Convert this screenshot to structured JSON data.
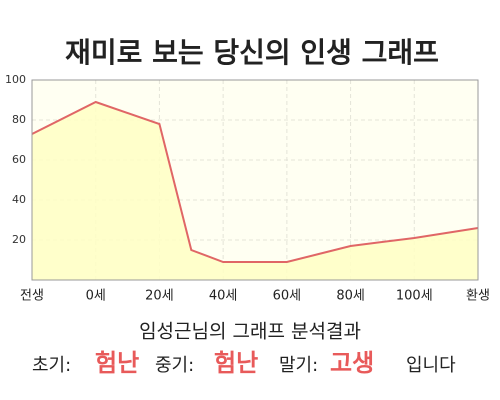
{
  "chart_data": {
    "type": "area",
    "title": "재미로 보는 당신의 인생 그래프",
    "x": [
      -20,
      0,
      20,
      30,
      40,
      60,
      70,
      80,
      100,
      120
    ],
    "values": [
      73,
      89,
      78,
      15,
      9,
      9,
      13,
      17,
      21,
      26
    ],
    "color": "#e06666",
    "fill": "#ffffc4",
    "xlim": [
      -20,
      120
    ],
    "xticks": [
      {
        "value": -20,
        "label": "전생"
      },
      {
        "value": 0,
        "label": "0세"
      },
      {
        "value": 20,
        "label": "20세"
      },
      {
        "value": 40,
        "label": "40세"
      },
      {
        "value": 60,
        "label": "60세"
      },
      {
        "value": 80,
        "label": "80세"
      },
      {
        "value": 100,
        "label": "100세"
      },
      {
        "value": 120,
        "label": "환생"
      }
    ],
    "ylim": [
      0,
      100
    ],
    "yticks": [
      20,
      40,
      60,
      80,
      100
    ],
    "grid": true
  },
  "result": {
    "heading": "임성근님의 그래프 분석결과",
    "items": [
      {
        "label": "초기:",
        "value": "험난"
      },
      {
        "label": "중기:",
        "value": "험난"
      },
      {
        "label": "말기:",
        "value": "고생"
      }
    ],
    "suffix": "입니다"
  }
}
